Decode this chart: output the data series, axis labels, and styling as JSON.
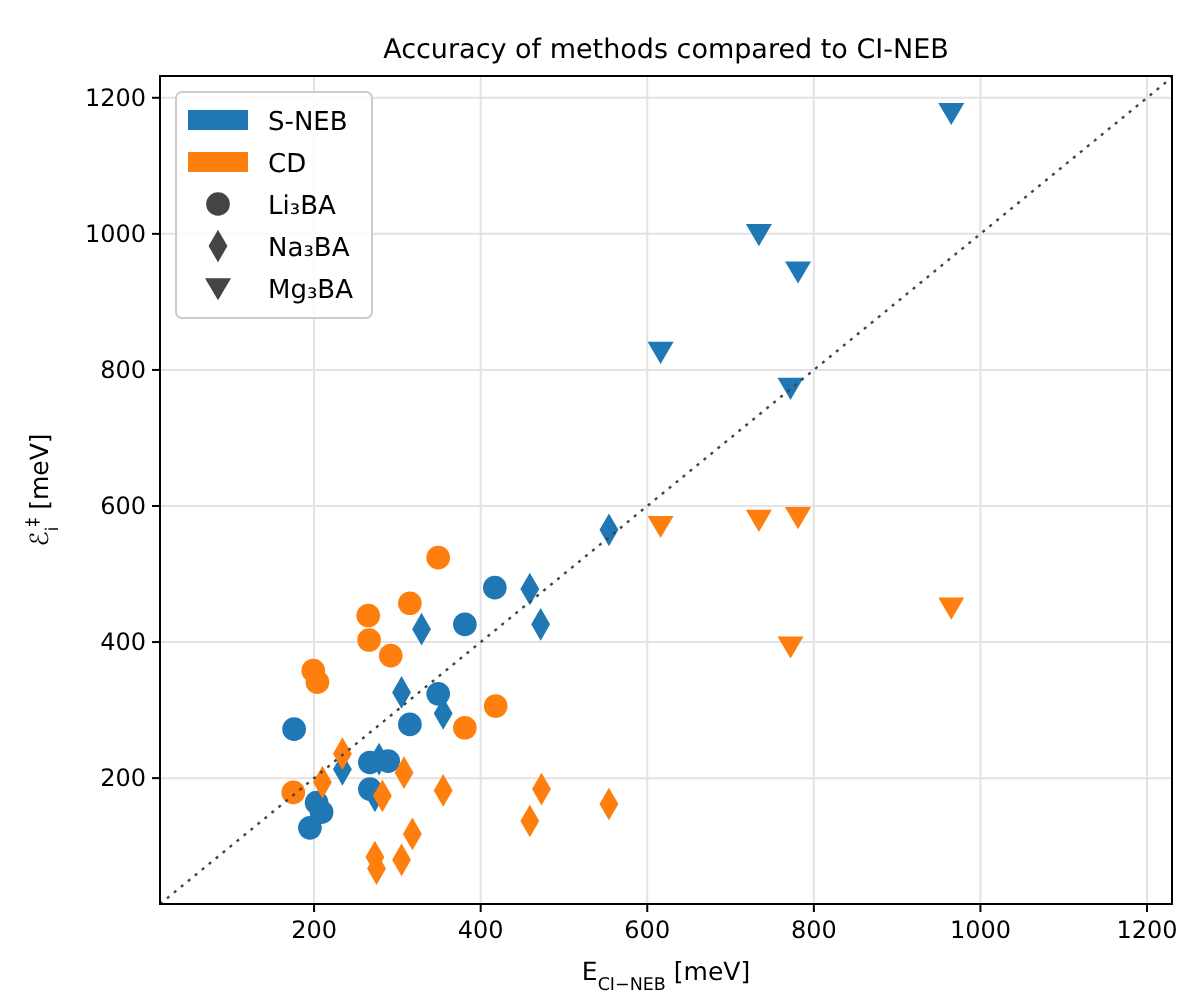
{
  "chart_data": {
    "type": "scatter",
    "title": "Accuracy of methods compared to CI-NEB",
    "xlabel": "E$_{CI−NEB}$ [meV]",
    "ylabel": "ℰ$_{i}$$^{‡}$ [meV]",
    "xlim": [
      15,
      1230
    ],
    "ylim": [
      15,
      1232
    ],
    "xticks": [
      200,
      400,
      600,
      800,
      1000,
      1200
    ],
    "yticks": [
      200,
      400,
      600,
      800,
      1000,
      1200
    ],
    "grid": true,
    "legend": "top left",
    "series": [
      {
        "name": "S-NEB",
        "color": "#1f77b4",
        "marker": "circle",
        "x": [
          417,
          381,
          349,
          315,
          176,
          267,
          289,
          267,
          203,
          195,
          209
        ],
        "values": [
          480,
          426,
          324,
          279,
          272,
          223,
          225,
          184,
          164,
          127,
          150
        ]
      },
      {
        "color": "#1f77b4",
        "marker": "diamond",
        "x": [
          554,
          459,
          472,
          329,
          305,
          355,
          234,
          278,
          273
        ],
        "values": [
          565,
          478,
          426,
          419,
          326,
          295,
          213,
          228,
          174
        ]
      },
      {
        "color": "#1f77b4",
        "marker": "triangle",
        "x": [
          965,
          734,
          781,
          616,
          772
        ],
        "values": [
          1178,
          1000,
          945,
          827,
          774
        ]
      },
      {
        "name": "CD",
        "color": "#ff7f0e",
        "marker": "circle",
        "x": [
          349,
          315,
          265,
          266,
          292,
          199,
          204,
          418,
          381,
          175
        ],
        "values": [
          524,
          457,
          439,
          403,
          380,
          358,
          341,
          306,
          274,
          179
        ]
      },
      {
        "color": "#ff7f0e",
        "marker": "diamond",
        "x": [
          234,
          210,
          308,
          282,
          355,
          473,
          459,
          554,
          318,
          305,
          273,
          275
        ],
        "values": [
          236,
          194,
          208,
          174,
          182,
          184,
          137,
          162,
          118,
          80,
          84,
          67
        ]
      },
      {
        "color": "#ff7f0e",
        "marker": "triangle",
        "x": [
          616,
          734,
          781,
          772,
          965
        ],
        "values": [
          571,
          580,
          584,
          394,
          451
        ]
      },
      {
        "type": "line",
        "color": "#444444",
        "line_style": "dotted",
        "marker": "none",
        "x": [
          15,
          1230
        ],
        "values": [
          15,
          1230
        ]
      },
      {
        "name": "Li₃BA",
        "color": "#444444",
        "marker": "circle"
      },
      {
        "name": "Na₃BA",
        "color": "#444444",
        "marker": "diamond"
      },
      {
        "name": "Mg₃BA",
        "color": "#444444",
        "marker": "triangle"
      }
    ]
  }
}
